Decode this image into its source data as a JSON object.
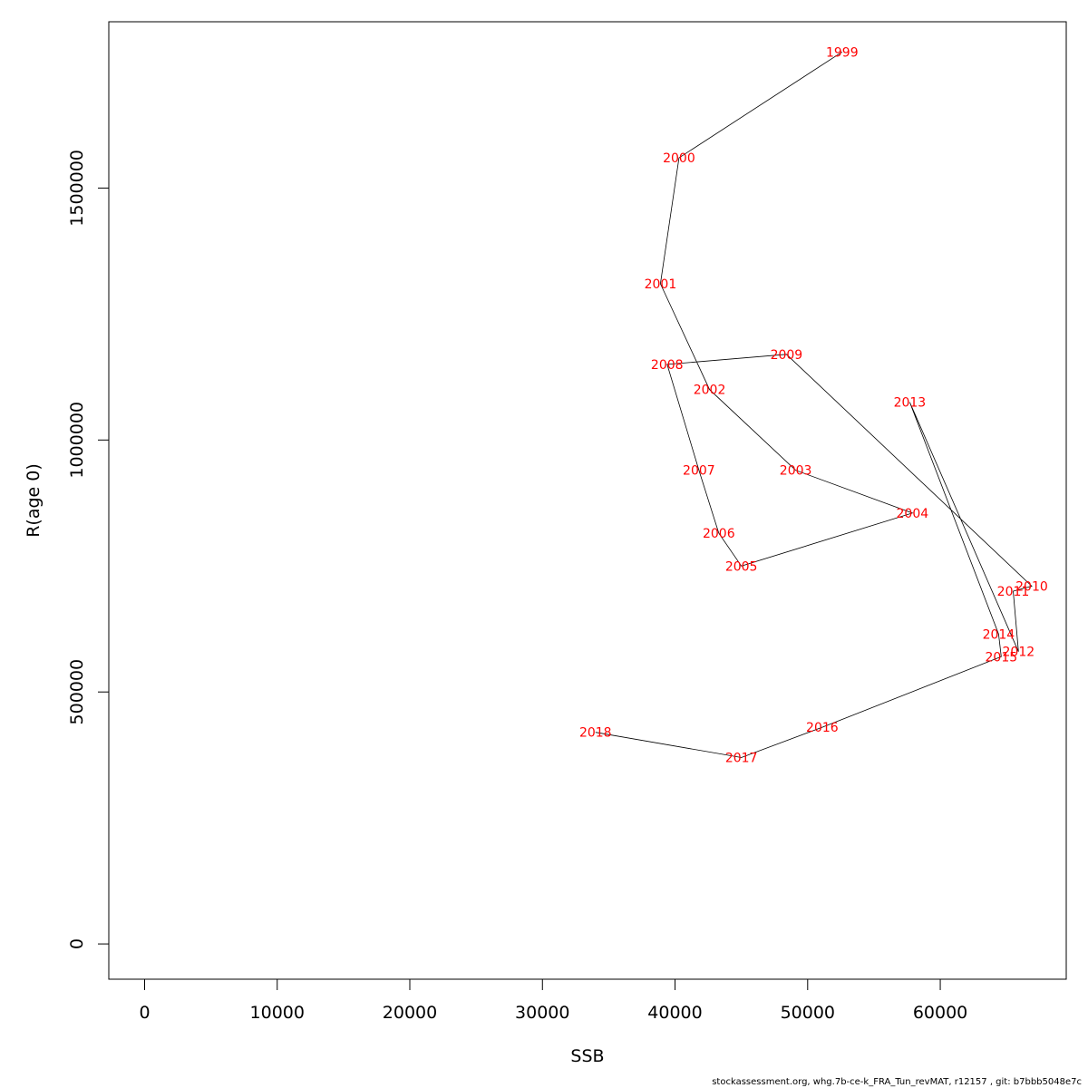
{
  "chart_data": {
    "type": "line",
    "xlabel": "SSB",
    "ylabel": "R(age 0)",
    "xlim": [
      -2700,
      69500
    ],
    "ylim": [
      -70000,
      1830000
    ],
    "xticks": [
      0,
      10000,
      20000,
      30000,
      40000,
      50000,
      60000
    ],
    "yticks": [
      0,
      500000,
      1000000,
      1500000
    ],
    "point_label_color": "#ff0000",
    "line_color": "#000000",
    "points": [
      {
        "label": "1999",
        "x": 52600,
        "y": 1770000
      },
      {
        "label": "2000",
        "x": 40300,
        "y": 1560000
      },
      {
        "label": "2001",
        "x": 38900,
        "y": 1310000
      },
      {
        "label": "2002",
        "x": 42600,
        "y": 1100000
      },
      {
        "label": "2003",
        "x": 49100,
        "y": 940000
      },
      {
        "label": "2004",
        "x": 57900,
        "y": 855000
      },
      {
        "label": "2005",
        "x": 45000,
        "y": 750000
      },
      {
        "label": "2006",
        "x": 43300,
        "y": 815000
      },
      {
        "label": "2007",
        "x": 41800,
        "y": 940000
      },
      {
        "label": "2008",
        "x": 39400,
        "y": 1150000
      },
      {
        "label": "2009",
        "x": 48400,
        "y": 1170000
      },
      {
        "label": "2010",
        "x": 66900,
        "y": 710000
      },
      {
        "label": "2011",
        "x": 65500,
        "y": 700000
      },
      {
        "label": "2012",
        "x": 65900,
        "y": 580000
      },
      {
        "label": "2013",
        "x": 57700,
        "y": 1075000
      },
      {
        "label": "2014",
        "x": 64400,
        "y": 615000
      },
      {
        "label": "2015",
        "x": 64600,
        "y": 570000
      },
      {
        "label": "2016",
        "x": 51100,
        "y": 430000
      },
      {
        "label": "2017",
        "x": 45000,
        "y": 370000
      },
      {
        "label": "2018",
        "x": 34000,
        "y": 420000
      }
    ]
  },
  "footer": "stockassessment.org, whg.7b-ce-k_FRA_Tun_revMAT, r12157 , git: b7bbb5048e7c"
}
